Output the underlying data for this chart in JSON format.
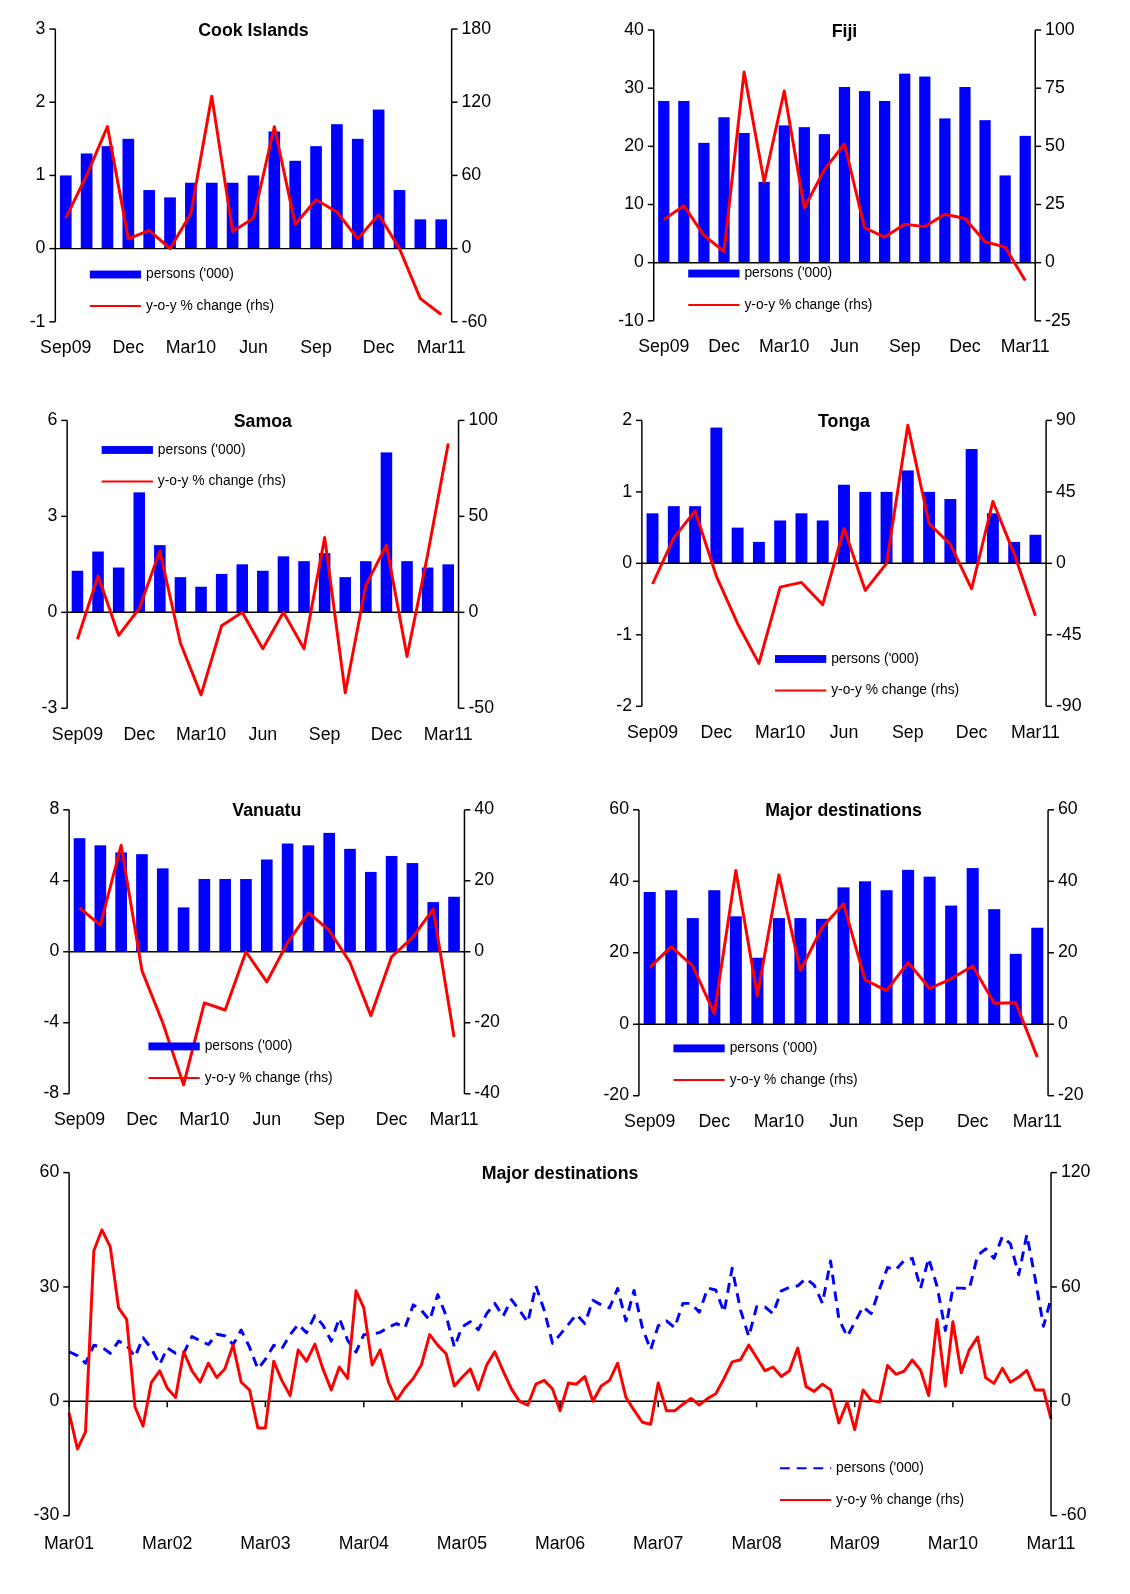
{
  "chart_data": [
    {
      "type": "bar",
      "title": "Cook Islands",
      "categories": [
        "Sep09",
        null,
        null,
        "Dec",
        null,
        null,
        "Mar10",
        null,
        null,
        "Jun",
        null,
        null,
        "Sep",
        null,
        null,
        "Dec",
        null,
        null,
        "Mar11"
      ],
      "ylim": [
        -1,
        3
      ],
      "yticks": [
        -1,
        0,
        1,
        2,
        3
      ],
      "y2lim": [
        -60,
        180
      ],
      "y2ticks": [
        -60,
        0,
        60,
        120,
        180
      ],
      "legend": "bottom left",
      "series": [
        {
          "name": "persons ('000)",
          "color": "#0000ff",
          "values": [
            1.0,
            1.3,
            1.4,
            1.5,
            0.8,
            0.7,
            0.9,
            0.9,
            0.9,
            1.0,
            1.6,
            1.2,
            1.4,
            1.7,
            1.5,
            1.9,
            0.8,
            0.4,
            0.4
          ]
        },
        {
          "name": "y-o-y % change (rhs)",
          "type": "line",
          "axis": "y2",
          "color": "#ff0000",
          "values": [
            25,
            60,
            100,
            8,
            15,
            0,
            29,
            125,
            14,
            25,
            100,
            20,
            40,
            30,
            8,
            28,
            0,
            -41,
            -54
          ]
        }
      ]
    },
    {
      "type": "bar",
      "title": "Fiji",
      "categories": [
        "Sep09",
        null,
        null,
        "Dec",
        null,
        null,
        "Mar10",
        null,
        null,
        "Jun",
        null,
        null,
        "Sep",
        null,
        null,
        "Dec",
        null,
        null,
        "Mar11"
      ],
      "ylim": [
        -10,
        40
      ],
      "yticks": [
        -10,
        0,
        10,
        20,
        30,
        40
      ],
      "y2lim": [
        -25,
        100
      ],
      "y2ticks": [
        -25,
        0,
        25,
        50,
        75,
        100
      ],
      "legend": "bottom left",
      "series": [
        {
          "name": "persons ('000)",
          "color": "#0000ff",
          "values": [
            27.8,
            27.8,
            20.6,
            25,
            22.3,
            13.9,
            23.6,
            23.3,
            22.1,
            30.2,
            29.5,
            27.8,
            32.5,
            32,
            24.8,
            30.2,
            24.5,
            15,
            21.8
          ]
        },
        {
          "name": "y-o-y % change (rhs)",
          "type": "line",
          "axis": "y2",
          "color": "#ff0000",
          "values": [
            18.5,
            24.5,
            11.7,
            4.8,
            82,
            34.7,
            73.8,
            23.5,
            40,
            51,
            15,
            11,
            16.5,
            15.5,
            20.8,
            19,
            9,
            6.7,
            -7.7
          ]
        }
      ]
    },
    {
      "type": "bar",
      "title": "Samoa",
      "categories": [
        "Sep09",
        null,
        null,
        "Dec",
        null,
        null,
        "Mar10",
        null,
        null,
        "Jun",
        null,
        null,
        "Sep",
        null,
        null,
        "Dec",
        null,
        null,
        "Mar11"
      ],
      "ylim": [
        -3,
        6
      ],
      "yticks": [
        -3,
        0,
        3,
        6
      ],
      "y2lim": [
        -50,
        100
      ],
      "y2ticks": [
        -50,
        0,
        50,
        100
      ],
      "legend": "top left",
      "series": [
        {
          "name": "persons ('000)",
          "color": "#0000ff",
          "values": [
            1.3,
            1.9,
            1.4,
            3.75,
            2.1,
            1.1,
            0.8,
            1.2,
            1.5,
            1.3,
            1.75,
            1.6,
            1.85,
            1.1,
            1.6,
            5.0,
            1.6,
            1.4,
            1.5
          ]
        },
        {
          "name": "y-o-y % change (rhs)",
          "type": "line",
          "axis": "y2",
          "color": "#ff0000",
          "values": [
            -14,
            19,
            -12,
            2,
            32,
            -16,
            -43,
            -7,
            0,
            -19,
            0,
            -19,
            39,
            -42,
            14,
            35,
            -23,
            30,
            88
          ]
        }
      ]
    },
    {
      "type": "bar",
      "title": "Tonga",
      "categories": [
        "Sep09",
        null,
        null,
        "Dec",
        null,
        null,
        "Mar10",
        null,
        null,
        "Jun",
        null,
        null,
        "Sep",
        null,
        null,
        "Dec",
        null,
        null,
        "Mar11"
      ],
      "ylim": [
        -2,
        2
      ],
      "yticks": [
        -2,
        -1,
        0,
        1,
        2
      ],
      "y2lim": [
        -90,
        90
      ],
      "y2ticks": [
        -90,
        -45,
        0,
        45,
        90
      ],
      "legend": "bottom right",
      "series": [
        {
          "name": "persons ('000)",
          "color": "#0000ff",
          "values": [
            0.7,
            0.8,
            0.8,
            1.9,
            0.5,
            0.3,
            0.6,
            0.7,
            0.6,
            1.1,
            1.0,
            1.0,
            1.3,
            1.0,
            0.9,
            1.6,
            0.7,
            0.3,
            0.4
          ]
        },
        {
          "name": "y-o-y % change (rhs)",
          "type": "line",
          "axis": "y2",
          "color": "#ff0000",
          "values": [
            -13,
            16,
            33,
            -8,
            -38,
            -63,
            -15,
            -12,
            -26,
            22,
            -17,
            0,
            87,
            25,
            12,
            -16,
            39,
            6,
            -33
          ]
        }
      ]
    },
    {
      "type": "bar",
      "title": "Vanuatu",
      "categories": [
        "Sep09",
        null,
        null,
        "Dec",
        null,
        null,
        "Mar10",
        null,
        null,
        "Jun",
        null,
        null,
        "Sep",
        null,
        null,
        "Dec",
        null,
        null,
        "Mar11"
      ],
      "ylim": [
        -8,
        8
      ],
      "yticks": [
        -8,
        -4,
        0,
        4,
        8
      ],
      "y2lim": [
        -40,
        40
      ],
      "y2ticks": [
        -40,
        -20,
        0,
        20,
        40
      ],
      "legend": "bottom",
      "series": [
        {
          "name": "persons ('000)",
          "color": "#0000ff",
          "values": [
            6.4,
            6.0,
            5.6,
            5.5,
            4.7,
            2.5,
            4.1,
            4.1,
            4.1,
            5.2,
            6.1,
            6.0,
            6.7,
            5.8,
            4.5,
            5.4,
            5.0,
            2.8,
            3.1
          ]
        },
        {
          "name": "y-o-y % change (rhs)",
          "type": "line",
          "axis": "y2",
          "color": "#ff0000",
          "values": [
            12.4,
            7.5,
            30,
            -5.3,
            -20,
            -37.5,
            -14.4,
            -16.4,
            0,
            -8.5,
            2.6,
            11,
            6,
            -3,
            -18,
            -1.4,
            4,
            12,
            -24
          ]
        }
      ]
    },
    {
      "type": "bar",
      "title": "Major destinations",
      "categories": [
        "Sep09",
        null,
        null,
        "Dec",
        null,
        null,
        "Mar10",
        null,
        null,
        "Jun",
        null,
        null,
        "Sep",
        null,
        null,
        "Dec",
        null,
        null,
        "Mar11"
      ],
      "ylim": [
        -20,
        60
      ],
      "yticks": [
        -20,
        0,
        20,
        40,
        60
      ],
      "y2lim": [
        -20,
        60
      ],
      "y2ticks": [
        -20,
        0,
        20,
        40,
        60
      ],
      "legend": "bottom left",
      "series": [
        {
          "name": "persons ('000)",
          "color": "#0000ff",
          "values": [
            37,
            37.5,
            29.7,
            37.5,
            30.2,
            18.6,
            29.7,
            29.7,
            29.5,
            38.3,
            40,
            37.5,
            43.2,
            41.3,
            33.2,
            43.7,
            32.2,
            19.7,
            27
          ]
        },
        {
          "name": "y-o-y % change (rhs)",
          "type": "line",
          "axis": "y2",
          "color": "#ff0000",
          "values": [
            15.9,
            21.7,
            16.3,
            3,
            43,
            8,
            41.8,
            15,
            27,
            33.7,
            12.4,
            9.4,
            17.3,
            10,
            12.7,
            16.3,
            5.9,
            6,
            -9.2
          ]
        }
      ]
    },
    {
      "type": "line",
      "title": "Major destinations",
      "x": [
        "2001-03",
        "2001-04",
        "2001-05",
        "2001-06",
        "2001-07",
        "2001-08",
        "2001-09",
        "2001-10",
        "2001-11",
        "2001-12",
        "2002-01",
        "2002-02",
        "2002-03",
        "2002-04",
        "2002-05",
        "2002-06",
        "2002-07",
        "2002-08",
        "2002-09",
        "2002-10",
        "2002-11",
        "2002-12",
        "2003-01",
        "2003-02",
        "2003-03",
        "2003-04",
        "2003-05",
        "2003-06",
        "2003-07",
        "2003-08",
        "2003-09",
        "2003-10",
        "2003-11",
        "2003-12",
        "2004-01",
        "2004-02",
        "2004-03",
        "2004-04",
        "2004-05",
        "2004-06",
        "2004-07",
        "2004-08",
        "2004-09",
        "2004-10",
        "2004-11",
        "2004-12",
        "2005-01",
        "2005-02",
        "2005-03",
        "2005-04",
        "2005-05",
        "2005-06",
        "2005-07",
        "2005-08",
        "2005-09",
        "2005-10",
        "2005-11",
        "2005-12",
        "2006-01",
        "2006-02",
        "2006-03",
        "2006-04",
        "2006-05",
        "2006-06",
        "2006-07",
        "2006-08",
        "2006-09",
        "2006-10",
        "2006-11",
        "2006-12",
        "2007-01",
        "2007-02",
        "2007-03",
        "2007-04",
        "2007-05",
        "2007-06",
        "2007-07",
        "2007-08",
        "2007-09",
        "2007-10",
        "2007-11",
        "2007-12",
        "2008-01",
        "2008-02",
        "2008-03",
        "2008-04",
        "2008-05",
        "2008-06",
        "2008-07",
        "2008-08",
        "2008-09",
        "2008-10",
        "2008-11",
        "2008-12",
        "2009-01",
        "2009-02",
        "2009-03",
        "2009-04",
        "2009-05",
        "2009-06",
        "2009-07",
        "2009-08",
        "2009-09",
        "2009-10",
        "2009-11",
        "2009-12",
        "2010-01",
        "2010-02",
        "2010-03",
        "2010-04",
        "2010-05",
        "2010-06",
        "2010-07",
        "2010-08",
        "2010-09",
        "2010-10",
        "2010-11",
        "2010-12",
        "2011-01",
        "2011-02",
        "2011-03"
      ],
      "xlim": [
        "2001-03",
        "2011-03"
      ],
      "xticks": [
        {
          "value": "2001-03",
          "label": "Mar01"
        },
        {
          "value": "2002-03",
          "label": "Mar02"
        },
        {
          "value": "2003-03",
          "label": "Mar03"
        },
        {
          "value": "2004-03",
          "label": "Mar04"
        },
        {
          "value": "2005-03",
          "label": "Mar05"
        },
        {
          "value": "2006-03",
          "label": "Mar06"
        },
        {
          "value": "2007-03",
          "label": "Mar07"
        },
        {
          "value": "2008-03",
          "label": "Mar08"
        },
        {
          "value": "2009-03",
          "label": "Mar09"
        },
        {
          "value": "2010-03",
          "label": "Mar10"
        },
        {
          "value": "2011-03",
          "label": "Mar11"
        }
      ],
      "ylim": [
        -30,
        60
      ],
      "yticks": [
        -30,
        0,
        30,
        60
      ],
      "y2lim": [
        -60,
        120
      ],
      "y2ticks": [
        -60,
        0,
        60,
        120
      ],
      "legend": "bottom right",
      "series": [
        {
          "name": "persons ('000)",
          "line_style": "dashed",
          "color": "#0000ff",
          "values": [
            13,
            12,
            10,
            14.7,
            14.2,
            12.6,
            15.8,
            14.7,
            11.7,
            16.7,
            13.8,
            9.7,
            14,
            12.6,
            12.6,
            17,
            15.9,
            14.9,
            17.6,
            17.2,
            14.9,
            18.7,
            14.2,
            8.5,
            11,
            14.7,
            13.8,
            17.5,
            20.2,
            18,
            22.5,
            20,
            15.8,
            21.8,
            16,
            12.9,
            17.5,
            17.6,
            18.1,
            19.5,
            20.4,
            19.3,
            25.3,
            23.9,
            21.3,
            28,
            22.5,
            14.2,
            19.5,
            20.9,
            18.8,
            23,
            25.7,
            22.3,
            26.7,
            23.9,
            20.7,
            30.3,
            23.9,
            15.2,
            17.5,
            20.2,
            22.8,
            20.4,
            26.5,
            25.3,
            24.5,
            29.6,
            21.1,
            29.1,
            19.3,
            13.5,
            19.8,
            21.1,
            19.3,
            25.7,
            25.7,
            23.4,
            29.7,
            29.2,
            23.4,
            34.9,
            24,
            17,
            24.8,
            24.8,
            23,
            29,
            29.9,
            30.3,
            32.2,
            30.5,
            25.7,
            36.8,
            21.6,
            17,
            20.7,
            24.8,
            23,
            29.4,
            35.1,
            34.5,
            37,
            37.5,
            29.7,
            37.5,
            30.2,
            18.6,
            29.7,
            29.7,
            29.5,
            38.3,
            40,
            37.5,
            43.2,
            41.3,
            33.2,
            43.7,
            32.2,
            19.7,
            27
          ]
        },
        {
          "name": "y-o-y % change (rhs)",
          "line_style": "solid",
          "axis": "y2",
          "color": "#ff0000",
          "values": [
            -6,
            -25,
            -16,
            79,
            90,
            81,
            49,
            43,
            -3,
            -13,
            10,
            16,
            7,
            2,
            26,
            16,
            10,
            20,
            12.5,
            17,
            29.5,
            10,
            6,
            -14,
            -14,
            21,
            11,
            3,
            27,
            21,
            30,
            17,
            6,
            18,
            12,
            58,
            49,
            19,
            27,
            10,
            0.5,
            7,
            12,
            19,
            35,
            29.5,
            25,
            8,
            12.5,
            17,
            6,
            19,
            26,
            16,
            6.5,
            0,
            -2,
            9,
            11,
            6.5,
            -5,
            9.6,
            9,
            13,
            0,
            8,
            11,
            20,
            2,
            -4.6,
            -11,
            -12,
            9.6,
            -5,
            -5,
            -1.5,
            1.5,
            -2,
            1.5,
            4,
            12,
            20.7,
            21.8,
            29.5,
            23,
            16,
            18,
            13,
            16,
            28,
            7.7,
            5.2,
            9,
            6,
            -11.4,
            -0.4,
            -14.8,
            6,
            0.5,
            -0.4,
            18.8,
            14.2,
            15.9,
            21.7,
            16.3,
            3,
            43,
            8,
            41.8,
            15,
            27,
            33.7,
            12.4,
            9.4,
            17.3,
            10,
            12.7,
            16.3,
            5.9,
            6,
            -9.2
          ]
        }
      ]
    }
  ]
}
